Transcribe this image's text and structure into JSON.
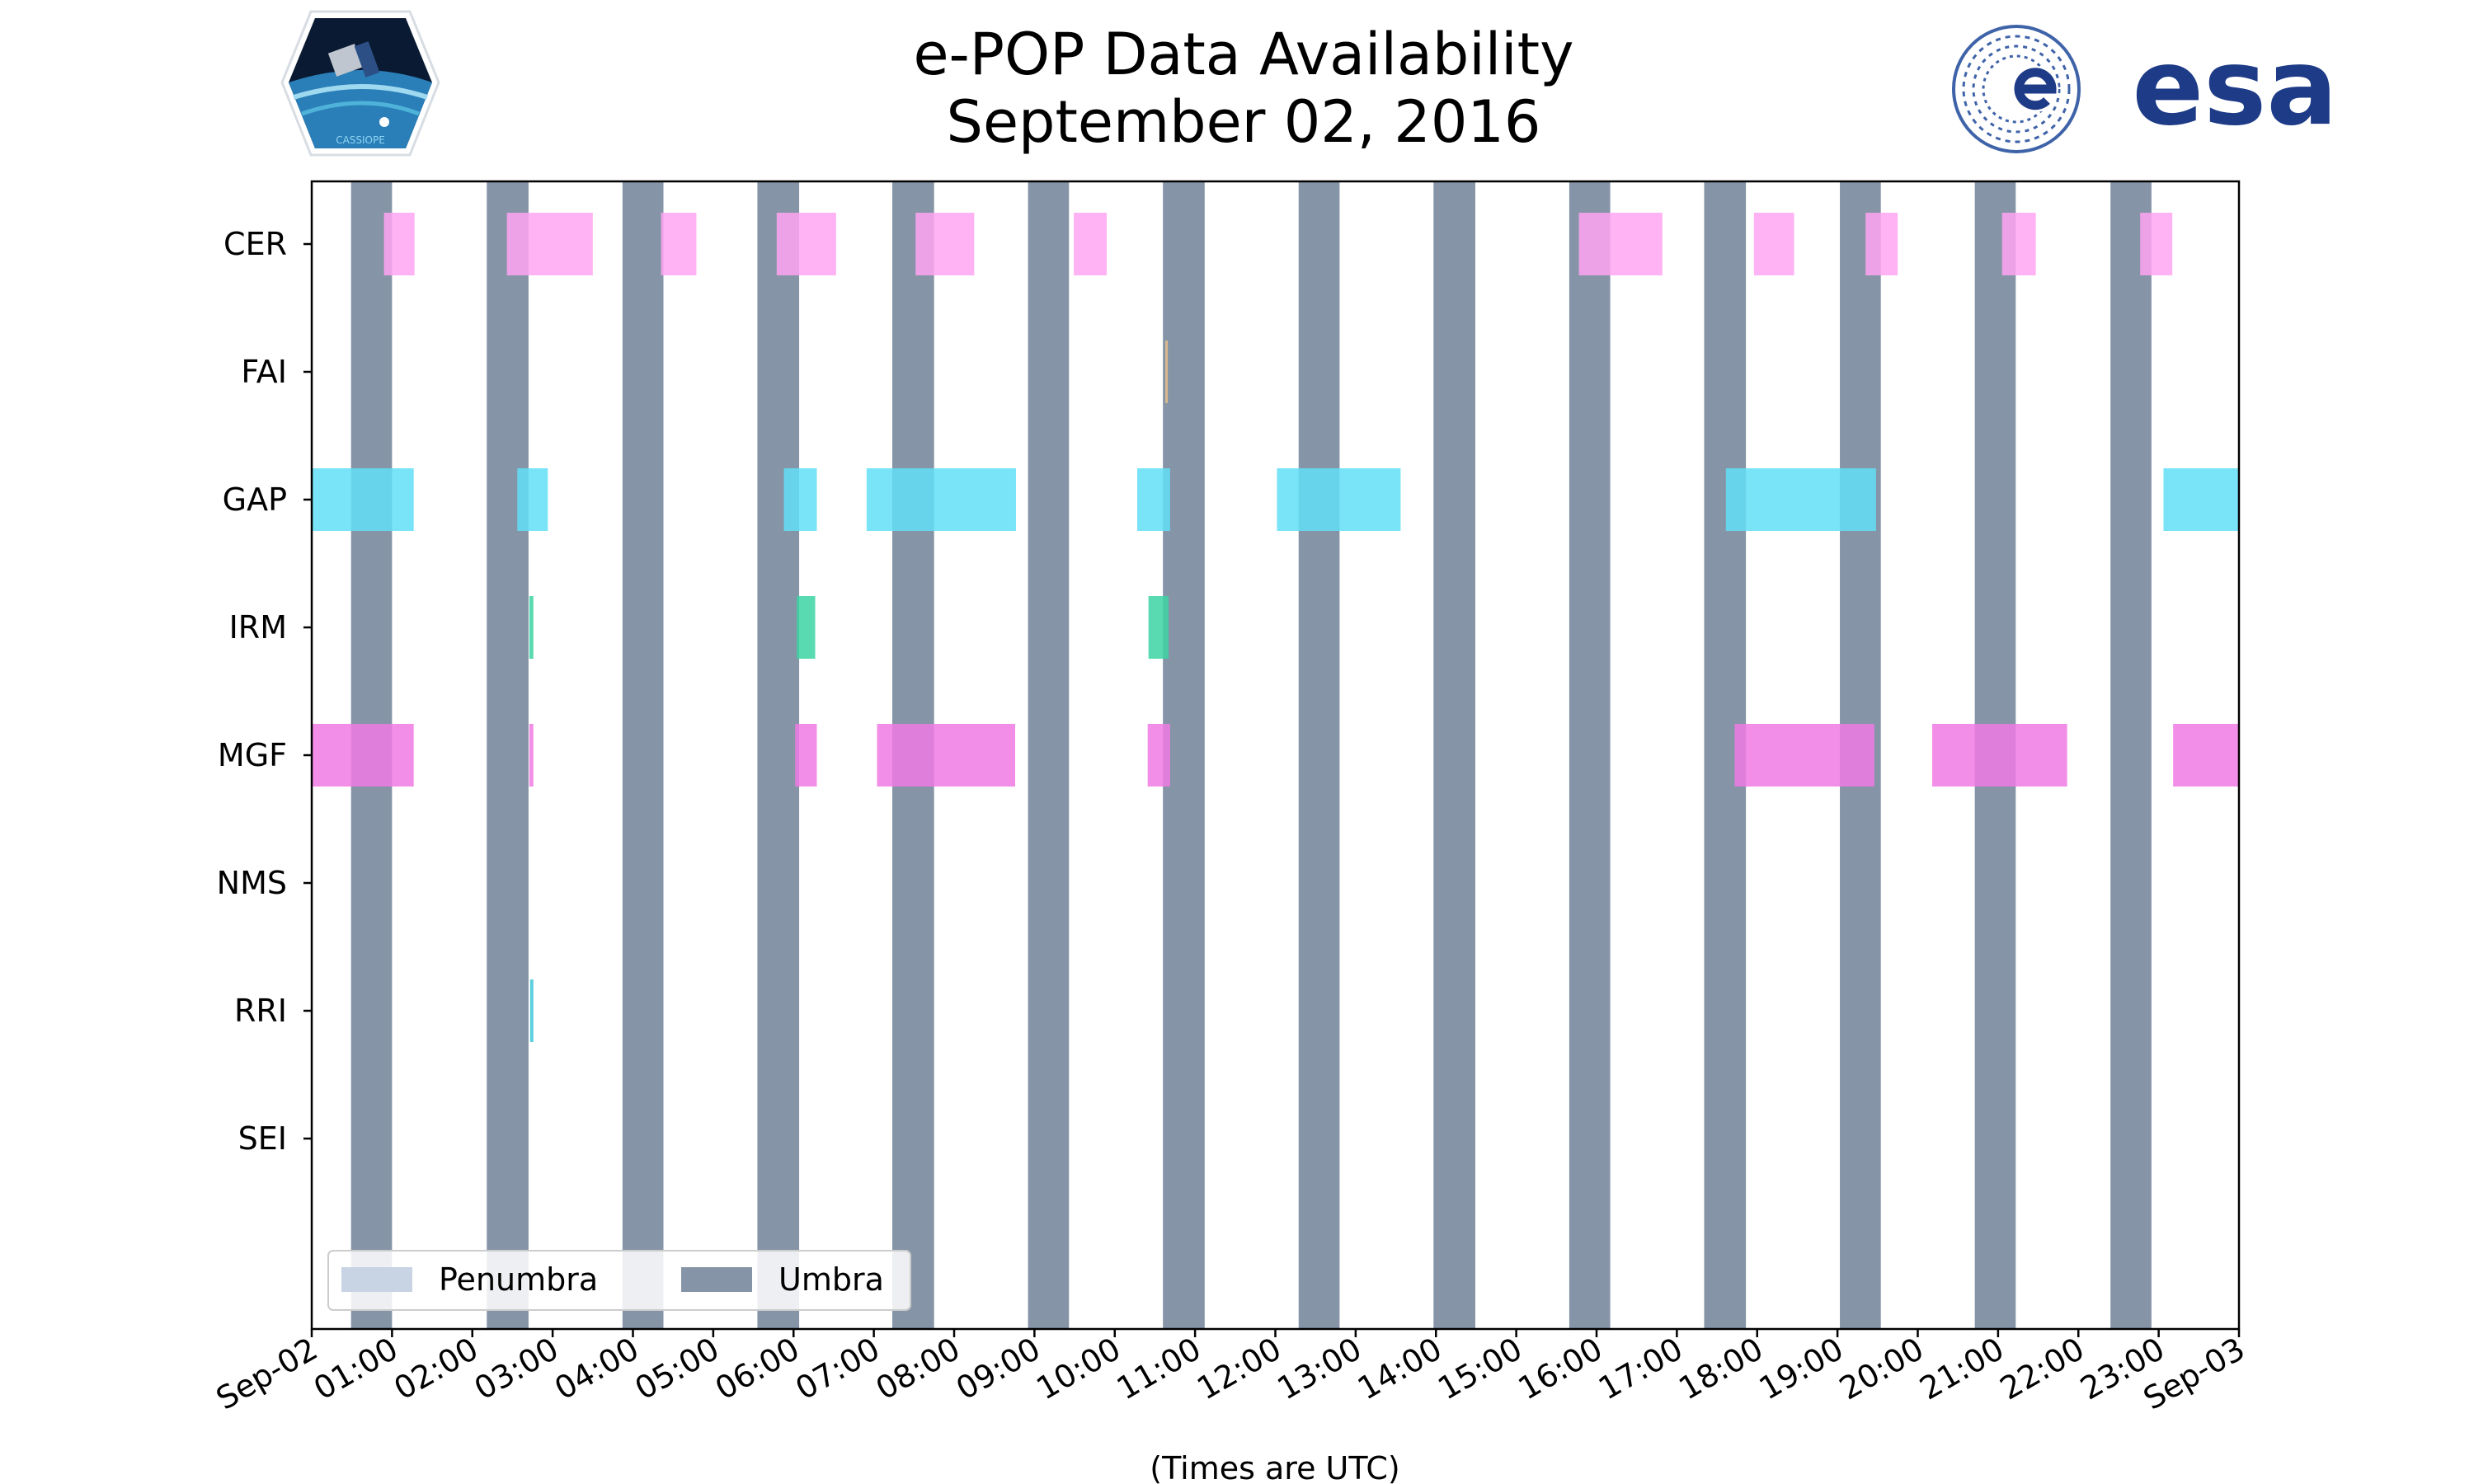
{
  "chart_data": {
    "type": "timeline",
    "title_line1": "e-POP Data Availability",
    "title_line2": "September 02, 2016",
    "xlabel": "(Times are UTC)",
    "x_unit": "hours since Sep-02 00:00 UTC",
    "xlim": [
      0,
      24
    ],
    "x_tick_labels": [
      "Sep-02",
      "01:00",
      "02:00",
      "03:00",
      "04:00",
      "05:00",
      "06:00",
      "07:00",
      "08:00",
      "09:00",
      "10:00",
      "11:00",
      "12:00",
      "13:00",
      "14:00",
      "15:00",
      "16:00",
      "17:00",
      "18:00",
      "19:00",
      "20:00",
      "21:00",
      "22:00",
      "23:00",
      "Sep-03"
    ],
    "instruments": [
      "CER",
      "FAI",
      "GAP",
      "IRM",
      "MGF",
      "NMS",
      "RRI",
      "SEI"
    ],
    "legend": [
      {
        "label": "Penumbra",
        "color": "#c8d4e3"
      },
      {
        "label": "Umbra",
        "color": "#8594a6"
      }
    ],
    "umbra_color": "#8594a6",
    "umbra_intervals": [
      [
        0.49,
        1.0
      ],
      [
        2.18,
        2.7
      ],
      [
        3.87,
        4.38
      ],
      [
        5.55,
        6.07
      ],
      [
        7.23,
        7.75
      ],
      [
        8.92,
        9.43
      ],
      [
        10.6,
        11.12
      ],
      [
        12.29,
        12.8
      ],
      [
        13.97,
        14.49
      ],
      [
        15.66,
        16.17
      ],
      [
        17.34,
        17.86
      ],
      [
        19.03,
        19.54
      ],
      [
        20.71,
        21.22
      ],
      [
        22.4,
        22.91
      ]
    ],
    "series": [
      {
        "name": "CER",
        "color": "#ffa4f2",
        "intervals": [
          [
            0.9,
            1.28
          ],
          [
            2.43,
            3.5
          ],
          [
            4.35,
            4.79
          ],
          [
            5.79,
            6.53
          ],
          [
            7.52,
            8.25
          ],
          [
            9.49,
            9.9
          ],
          [
            15.78,
            16.82
          ],
          [
            17.96,
            18.46
          ],
          [
            19.35,
            19.75
          ],
          [
            21.05,
            21.47
          ],
          [
            22.77,
            23.17
          ]
        ]
      },
      {
        "name": "FAI",
        "color": "#e8c088",
        "intervals": [
          [
            10.63,
            10.66
          ]
        ]
      },
      {
        "name": "GAP",
        "color": "#62dff7",
        "intervals": [
          [
            0.0,
            1.27
          ],
          [
            2.56,
            2.94
          ],
          [
            5.88,
            6.29
          ],
          [
            6.91,
            8.77
          ],
          [
            10.28,
            10.69
          ],
          [
            12.02,
            13.56
          ],
          [
            17.61,
            19.48
          ],
          [
            23.06,
            24.0
          ]
        ]
      },
      {
        "name": "IRM",
        "color": "#3dd3a3",
        "intervals": [
          [
            2.71,
            2.76
          ],
          [
            6.04,
            6.27
          ],
          [
            10.42,
            10.67
          ]
        ]
      },
      {
        "name": "MGF",
        "color": "#f07ae4",
        "intervals": [
          [
            0.0,
            1.27
          ],
          [
            2.71,
            2.76
          ],
          [
            6.02,
            6.29
          ],
          [
            7.04,
            8.76
          ],
          [
            10.41,
            10.69
          ],
          [
            17.72,
            19.46
          ],
          [
            20.18,
            21.86
          ],
          [
            23.18,
            24.0
          ]
        ]
      },
      {
        "name": "NMS",
        "color": "#cccccc",
        "intervals": []
      },
      {
        "name": "RRI",
        "color": "#3cc7d8",
        "intervals": [
          [
            2.72,
            2.76
          ]
        ]
      },
      {
        "name": "SEI",
        "color": "#cccccc",
        "intervals": []
      }
    ]
  },
  "logos": {
    "left_caption": "CASSIOPE",
    "right_wordmark": "esa"
  }
}
